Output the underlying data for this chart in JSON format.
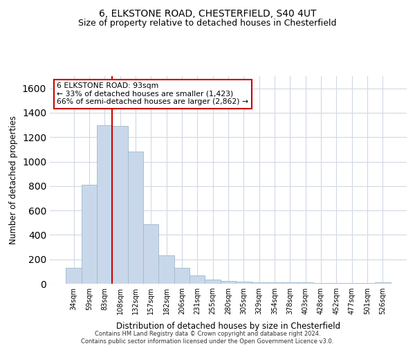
{
  "title": "6, ELKSTONE ROAD, CHESTERFIELD, S40 4UT",
  "subtitle": "Size of property relative to detached houses in Chesterfield",
  "xlabel": "Distribution of detached houses by size in Chesterfield",
  "ylabel": "Number of detached properties",
  "bar_color": "#c8d8ea",
  "bar_edge_color": "#a0b8cc",
  "categories": [
    "34sqm",
    "59sqm",
    "83sqm",
    "108sqm",
    "132sqm",
    "157sqm",
    "182sqm",
    "206sqm",
    "231sqm",
    "255sqm",
    "280sqm",
    "305sqm",
    "329sqm",
    "354sqm",
    "378sqm",
    "403sqm",
    "428sqm",
    "452sqm",
    "477sqm",
    "501sqm",
    "526sqm"
  ],
  "values": [
    130,
    810,
    1300,
    1290,
    1080,
    490,
    230,
    130,
    70,
    35,
    25,
    15,
    10,
    10,
    10,
    10,
    5,
    5,
    5,
    5,
    10
  ],
  "ylim": [
    0,
    1700
  ],
  "yticks": [
    0,
    200,
    400,
    600,
    800,
    1000,
    1200,
    1400,
    1600
  ],
  "vline_x": 2.5,
  "vline_color": "#cc0000",
  "annotation_text": "6 ELKSTONE ROAD: 93sqm\n← 33% of detached houses are smaller (1,423)\n66% of semi-detached houses are larger (2,862) →",
  "annotation_box_color": "#ffffff",
  "annotation_box_edge": "#cc0000",
  "footer_line1": "Contains HM Land Registry data © Crown copyright and database right 2024.",
  "footer_line2": "Contains public sector information licensed under the Open Government Licence v3.0.",
  "background_color": "#ffffff",
  "grid_color": "#d0d8e4"
}
